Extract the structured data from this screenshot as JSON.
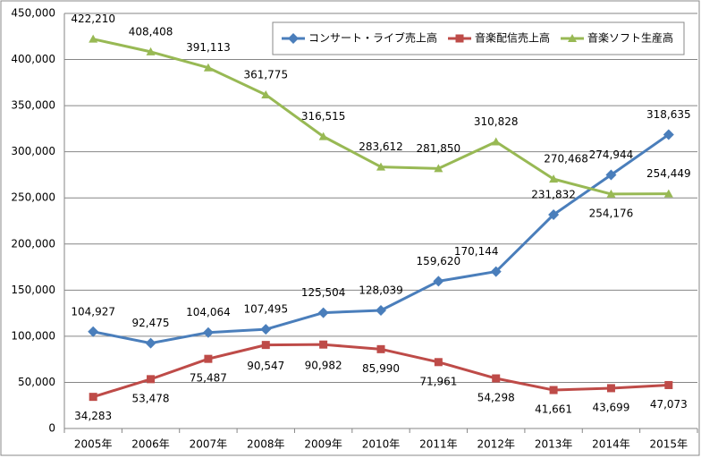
{
  "chart_data": {
    "type": "line",
    "categories": [
      "2005年",
      "2006年",
      "2007年",
      "2008年",
      "2009年",
      "2010年",
      "2011年",
      "2012年",
      "2013年",
      "2014年",
      "2015年"
    ],
    "series": [
      {
        "name": "コンサート・ライブ売上高",
        "color": "#4a7ebb",
        "marker": "diamond",
        "values": [
          104927,
          92475,
          104064,
          107495,
          125504,
          128039,
          159620,
          170144,
          231832,
          274944,
          318635
        ],
        "value_labels": [
          "104,927",
          "92,475",
          "104,064",
          "107,495",
          "125,504",
          "128,039",
          "159,620",
          "170,144",
          "231,832",
          "274,944",
          "318,635"
        ]
      },
      {
        "name": "音楽配信売上高",
        "color": "#be4b48",
        "marker": "square",
        "values": [
          34283,
          53478,
          75487,
          90547,
          90982,
          85990,
          71961,
          54298,
          41661,
          43699,
          47073
        ],
        "value_labels": [
          "34,283",
          "53,478",
          "75,487",
          "90,547",
          "90,982",
          "85,990",
          "71,961",
          "54,298",
          "41,661",
          "43,699",
          "47,073"
        ]
      },
      {
        "name": "音楽ソフト生産高",
        "color": "#98b954",
        "marker": "triangle",
        "values": [
          422210,
          408408,
          391113,
          361775,
          316515,
          283612,
          281850,
          310828,
          270468,
          254176,
          254449
        ],
        "value_labels": [
          "422,210",
          "408,408",
          "391,113",
          "361,775",
          "316,515",
          "283,612",
          "281,850",
          "310,828",
          "270,468",
          "254,176",
          "254,449"
        ]
      }
    ],
    "ylim": [
      0,
      450000
    ],
    "yticks": [
      0,
      {
        "value": 50000,
        "label": "50,000"
      },
      {
        "value": 100000,
        "label": "100,000"
      },
      {
        "value": 150000,
        "label": "150,000"
      },
      {
        "value": 200000,
        "label": "200,000"
      },
      {
        "value": 250000,
        "label": "250,000"
      },
      {
        "value": 300000,
        "label": "300,000"
      },
      {
        "value": 350000,
        "label": "350,000"
      },
      {
        "value": 400000,
        "label": "400,000"
      },
      {
        "value": 450000,
        "label": "450,000"
      }
    ],
    "grid": true,
    "legend": "top-right"
  }
}
